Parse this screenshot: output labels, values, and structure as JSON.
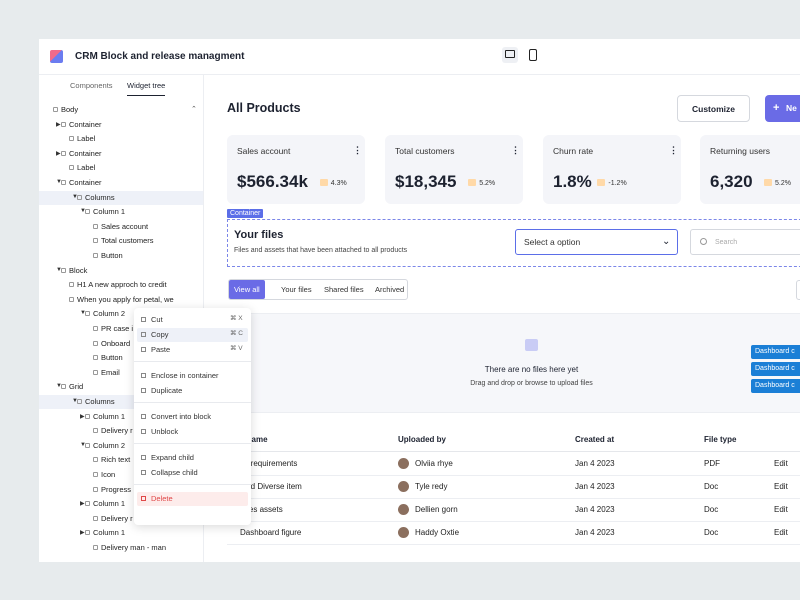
{
  "header": {
    "title": "CRM Block and release managment"
  },
  "sidebar": {
    "tabs": [
      "Components",
      "Widget tree"
    ],
    "active_tab": 1,
    "tree": [
      {
        "label": "Body",
        "level": 0,
        "toggle": "none",
        "selected": false
      },
      {
        "label": "Container",
        "level": 1,
        "toggle": "closed",
        "selected": false
      },
      {
        "label": "Label",
        "level": 2,
        "toggle": "none",
        "selected": false
      },
      {
        "label": "Container",
        "level": 1,
        "toggle": "closed",
        "selected": false
      },
      {
        "label": "Label",
        "level": 2,
        "toggle": "none",
        "selected": false
      },
      {
        "label": "Container",
        "level": 1,
        "toggle": "open",
        "selected": false
      },
      {
        "label": "Columns",
        "level": 3,
        "toggle": "open",
        "selected": true
      },
      {
        "label": "Column 1",
        "level": 4,
        "toggle": "open",
        "selected": false
      },
      {
        "label": "Sales account",
        "level": 5,
        "toggle": "none",
        "selected": false
      },
      {
        "label": "Total customers",
        "level": 5,
        "toggle": "none",
        "selected": false
      },
      {
        "label": "Button",
        "level": 5,
        "toggle": "none",
        "selected": false
      },
      {
        "label": "Block",
        "level": 1,
        "toggle": "open",
        "selected": false
      },
      {
        "label": "H1 A new approch to credit",
        "level": 2,
        "toggle": "none",
        "selected": false
      },
      {
        "label": "When you apply for petal, we",
        "level": 2,
        "toggle": "none",
        "selected": false
      },
      {
        "label": "Column 2",
        "level": 4,
        "toggle": "open",
        "selected": false
      },
      {
        "label": "PR case i",
        "level": 5,
        "toggle": "none",
        "selected": false
      },
      {
        "label": "Onboard",
        "level": 5,
        "toggle": "none",
        "selected": false
      },
      {
        "label": "Button",
        "level": 5,
        "toggle": "none",
        "selected": false
      },
      {
        "label": "Email",
        "level": 5,
        "toggle": "none",
        "selected": false
      },
      {
        "label": "Grid",
        "level": 1,
        "toggle": "open",
        "selected": false
      },
      {
        "label": "Columns",
        "level": 3,
        "toggle": "open",
        "selected": true
      },
      {
        "label": "Column 1",
        "level": 4,
        "toggle": "closed",
        "selected": false
      },
      {
        "label": "Delivery r",
        "level": 5,
        "toggle": "none",
        "selected": false
      },
      {
        "label": "Column 2",
        "level": 4,
        "toggle": "open",
        "selected": false
      },
      {
        "label": "Rich text",
        "level": 5,
        "toggle": "none",
        "selected": false
      },
      {
        "label": "Icon",
        "level": 5,
        "toggle": "none",
        "selected": false
      },
      {
        "label": "Progress",
        "level": 5,
        "toggle": "none",
        "selected": false
      },
      {
        "label": "Column 1",
        "level": 4,
        "toggle": "closed",
        "selected": false
      },
      {
        "label": "Delivery r",
        "level": 5,
        "toggle": "none",
        "selected": false
      },
      {
        "label": "Column 1",
        "level": 4,
        "toggle": "closed",
        "selected": false
      },
      {
        "label": "Delivery man - man",
        "level": 5,
        "toggle": "none",
        "selected": false
      }
    ]
  },
  "context_menu": {
    "groups": [
      [
        {
          "label": "Cut",
          "shortcut": "⌘ X"
        },
        {
          "label": "Copy",
          "shortcut": "⌘ C",
          "highlighted": true
        },
        {
          "label": "Paste",
          "shortcut": "⌘ V"
        }
      ],
      [
        {
          "label": "Enclose in container"
        },
        {
          "label": "Duplicate"
        }
      ],
      [
        {
          "label": "Convert into block"
        },
        {
          "label": "Unblock"
        }
      ],
      [
        {
          "label": "Expand child"
        },
        {
          "label": "Collapse child"
        }
      ],
      [
        {
          "label": "Delete",
          "danger": true
        }
      ]
    ]
  },
  "main": {
    "title": "All Products",
    "buttons": [
      "Customize",
      "Ne"
    ],
    "cards": [
      {
        "label": "Sales account",
        "value": "$566.34k",
        "change": "4.3%"
      },
      {
        "label": "Total customers",
        "value": "$18,345",
        "change": "5.2%"
      },
      {
        "label": "Churn rate",
        "value": "1.8%",
        "change": "-1.2%"
      },
      {
        "label": "Returning users",
        "value": "6,320",
        "change": "5.2%"
      }
    ],
    "container_tag": "Container",
    "files": {
      "title": "Your files",
      "subtitle": "Files and assets that have been attached to all products",
      "select": "Select a option",
      "search": "Search",
      "tabs": [
        "View all",
        "Your files",
        "Shared files",
        "Archived"
      ],
      "active_tab": 0,
      "empty_title": "There are no files here yet",
      "empty_subtitle": "Drag and drop or browse to upload files",
      "side_buttons": [
        "Dashboard c",
        "Dashboard c",
        "Dashboard c"
      ],
      "table": {
        "columns": [
          "e name",
          "Uploaded by",
          "Created at",
          "File type"
        ],
        "rows": [
          [
            "ch requirements",
            "Olviia rhye",
            "Jan 4 2023",
            "PDF",
            "Edit"
          ],
          [
            "uled Diverse item",
            "Tyle redy",
            "Jan 4 2023",
            "Doc",
            "Edit"
          ],
          [
            "ages assets",
            "Dellien gorn",
            "Jan 4 2023",
            "Doc",
            "Edit"
          ],
          [
            "Dashboard figure",
            "Haddy Oxtie",
            "Jan 4 2023",
            "Doc",
            "Edit"
          ]
        ]
      }
    }
  }
}
